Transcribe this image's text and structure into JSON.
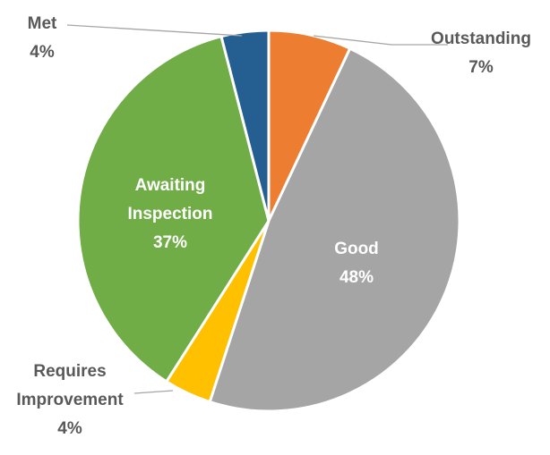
{
  "chart_data": {
    "type": "pie",
    "categories": [
      "Outstanding",
      "Good",
      "Requires Improvement",
      "Awaiting Inspection",
      "Met"
    ],
    "values": [
      7,
      48,
      4,
      37,
      4
    ],
    "value_labels": [
      "7%",
      "48%",
      "4%",
      "37%",
      "4%"
    ],
    "colors": [
      "#ED7D31",
      "#A5A5A5",
      "#FFC000",
      "#70AD47",
      "#255E91"
    ]
  }
}
